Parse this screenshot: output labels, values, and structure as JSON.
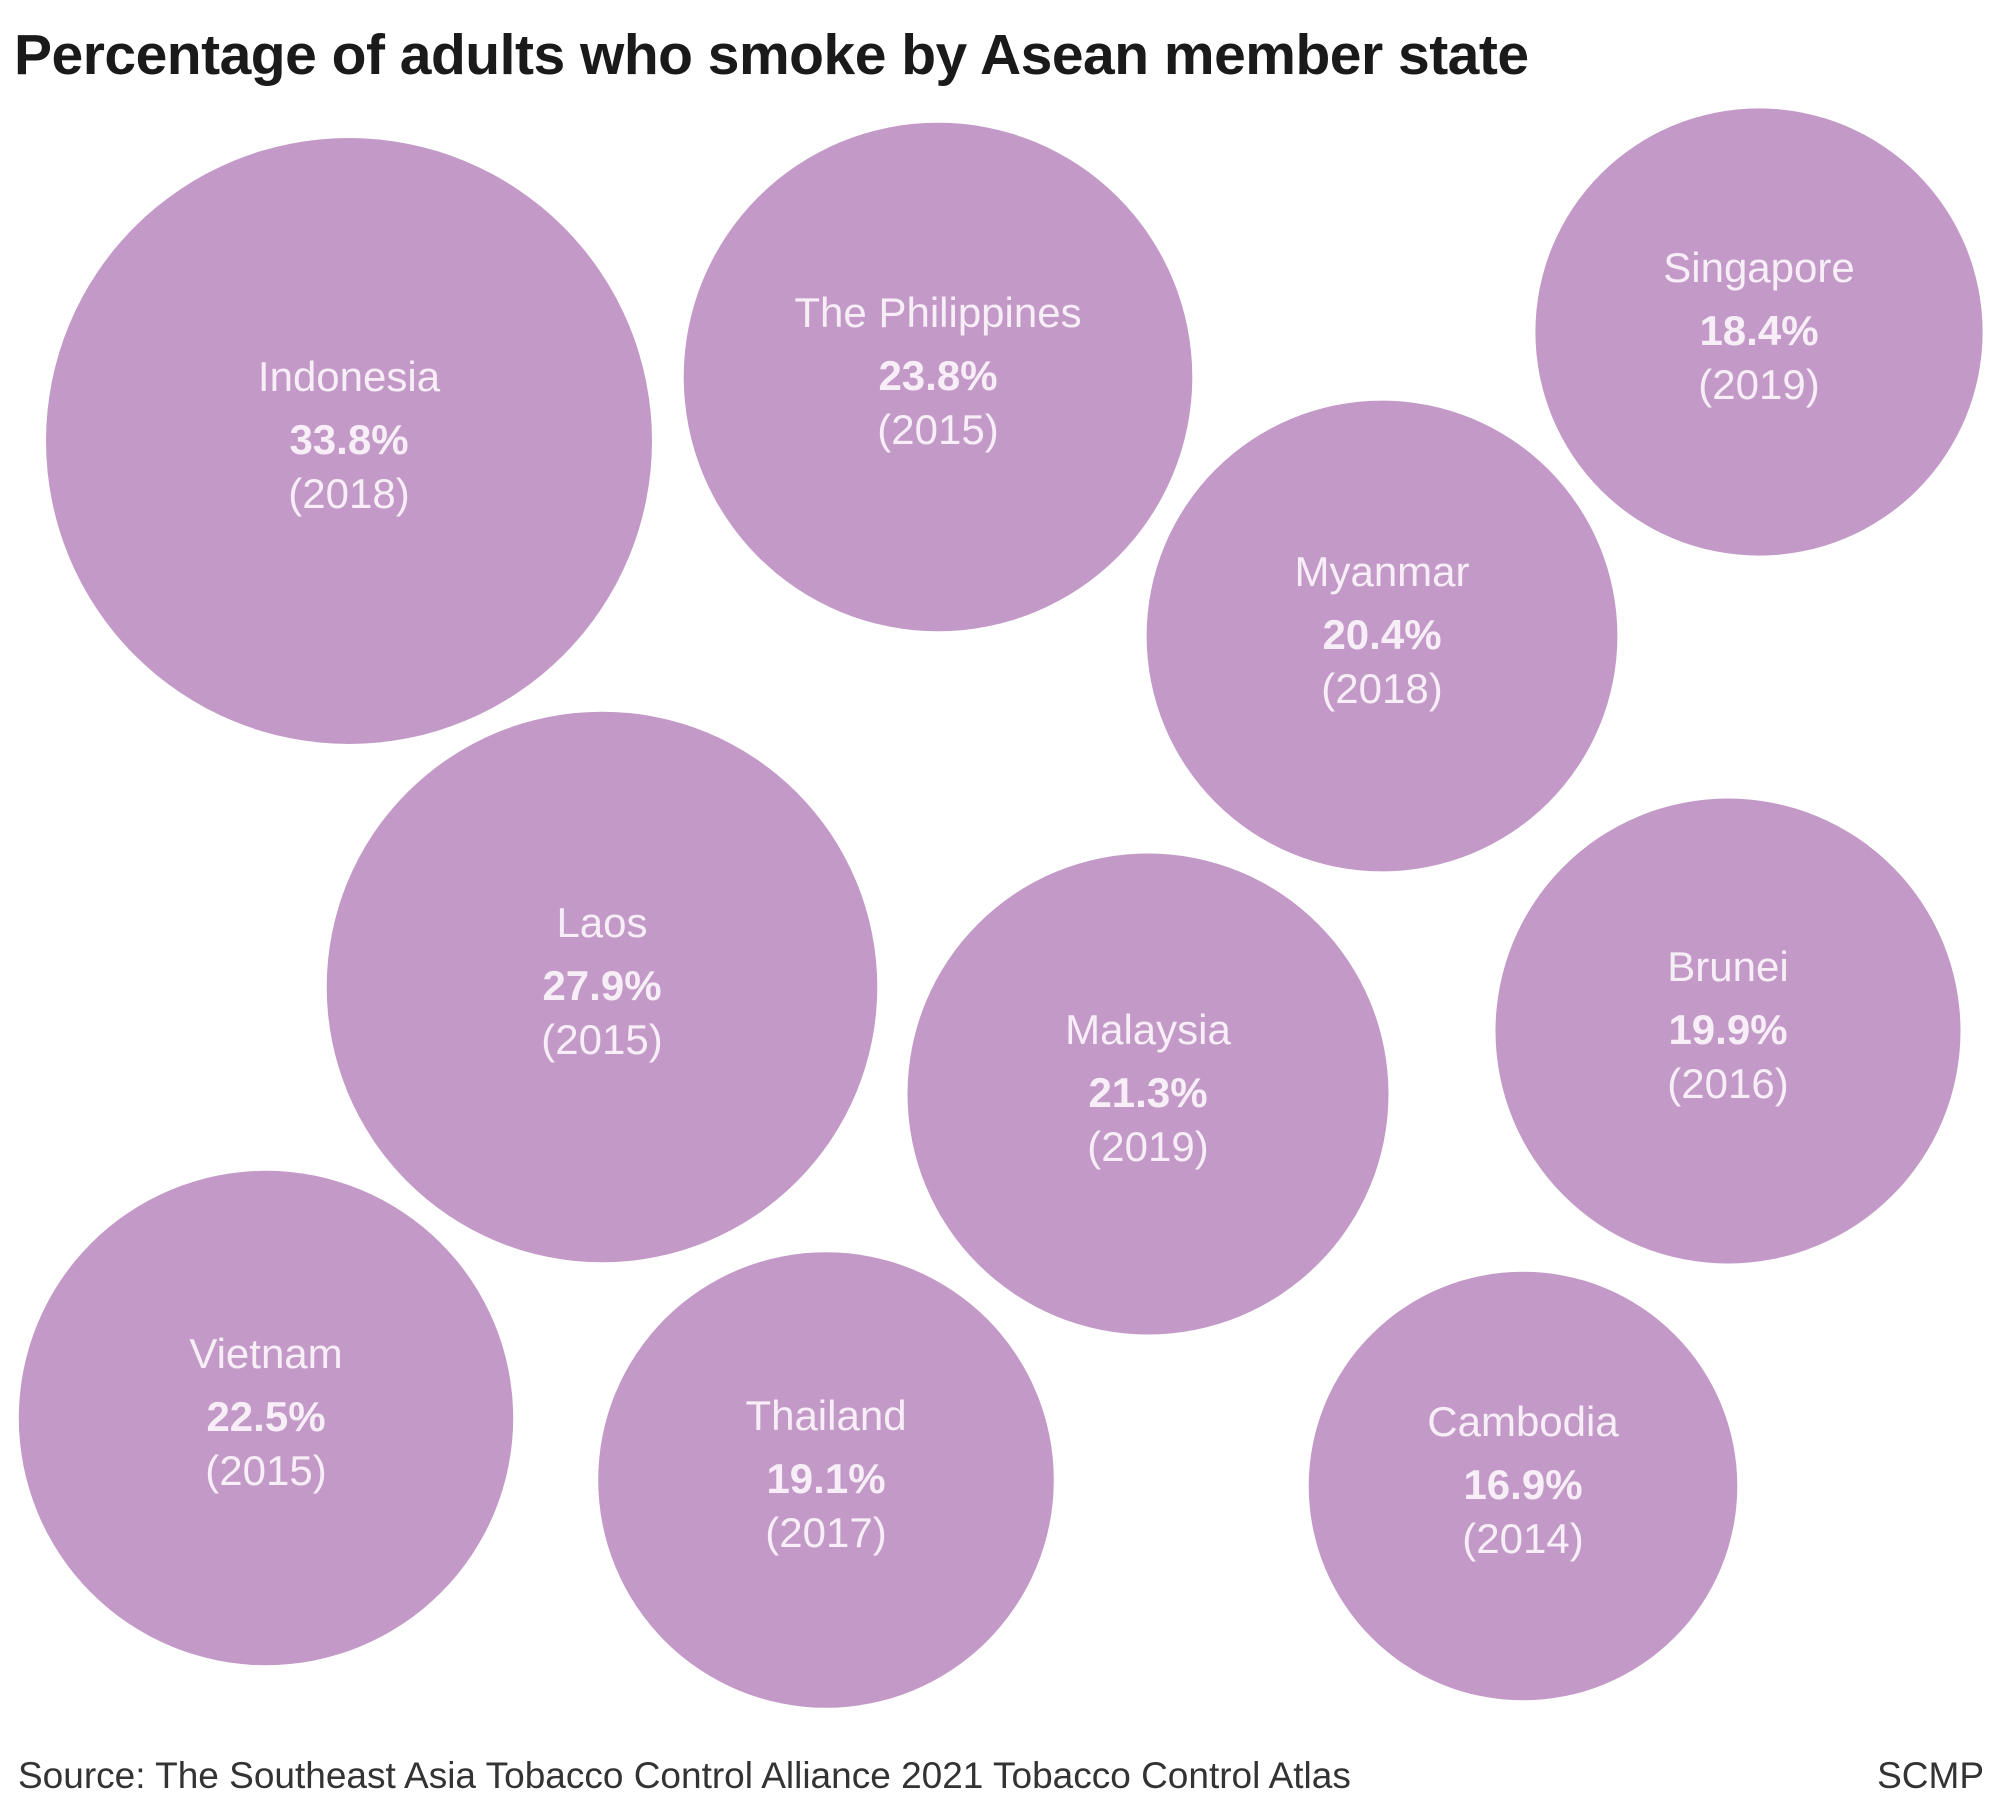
{
  "chart_data": {
    "type": "bubble",
    "title": "Percentage of adults who smoke by Asean member state",
    "unit": "%",
    "bubble_color": "#c39ac7",
    "label_color": "#f7eef7",
    "items": [
      {
        "country": "Indonesia",
        "value": 33.8,
        "value_label": "33.8%",
        "year_label": "(2018)"
      },
      {
        "country": "The Philippines",
        "value": 23.8,
        "value_label": "23.8%",
        "year_label": "(2015)"
      },
      {
        "country": "Singapore",
        "value": 18.4,
        "value_label": "18.4%",
        "year_label": "(2019)"
      },
      {
        "country": "Myanmar",
        "value": 20.4,
        "value_label": "20.4%",
        "year_label": "(2018)"
      },
      {
        "country": "Laos",
        "value": 27.9,
        "value_label": "27.9%",
        "year_label": "(2015)"
      },
      {
        "country": "Malaysia",
        "value": 21.3,
        "value_label": "21.3%",
        "year_label": "(2019)"
      },
      {
        "country": "Brunei",
        "value": 19.9,
        "value_label": "19.9%",
        "year_label": "(2016)"
      },
      {
        "country": "Vietnam",
        "value": 22.5,
        "value_label": "22.5%",
        "year_label": "(2015)"
      },
      {
        "country": "Thailand",
        "value": 19.1,
        "value_label": "19.1%",
        "year_label": "(2017)"
      },
      {
        "country": "Cambodia",
        "value": 16.9,
        "value_label": "16.9%",
        "year_label": "(2014)"
      }
    ]
  },
  "footer": {
    "source": "Source: The Southeast Asia Tobacco Control Alliance 2021 Tobacco Control Atlas",
    "credit": "SCMP"
  }
}
